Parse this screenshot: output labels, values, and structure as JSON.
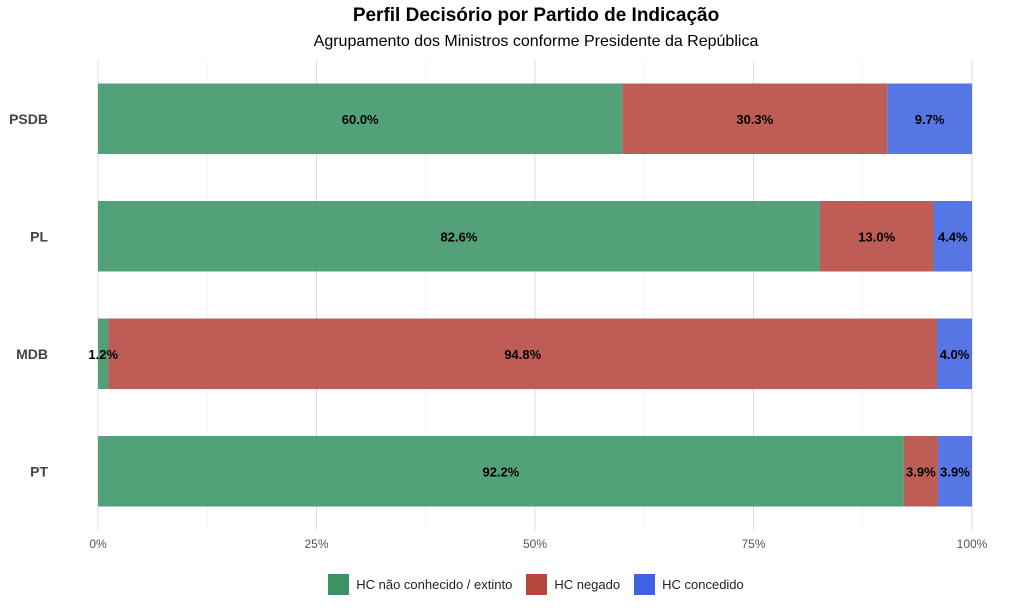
{
  "title": "Perfil Decisório por Partido de Indicação",
  "subtitle": "Agrupamento dos Ministros conforme Presidente da República",
  "chart_data": {
    "type": "bar",
    "orientation": "horizontal",
    "stacked": true,
    "normalized": true,
    "categories": [
      "PSDB",
      "PL",
      "MDB",
      "PT"
    ],
    "series": [
      {
        "name": "HC não conhecido / extinto",
        "color": "#3a9465",
        "values": [
          60.0,
          82.6,
          1.2,
          92.2
        ],
        "labels": [
          "60.0%",
          "82.6%",
          "1.2%",
          "92.2%"
        ]
      },
      {
        "name": "HC negado",
        "color": "#b5473d",
        "values": [
          30.3,
          13.0,
          94.8,
          3.9
        ],
        "labels": [
          "30.3%",
          "13.0%",
          "94.8%",
          "3.9%"
        ]
      },
      {
        "name": "HC concedido",
        "color": "#3d63e0",
        "values": [
          9.7,
          4.4,
          4.0,
          3.9
        ],
        "labels": [
          "9.7%",
          "4.4%",
          "4.0%",
          "3.9%"
        ]
      }
    ],
    "xticks": [
      "0%",
      "25%",
      "50%",
      "75%",
      "100%"
    ],
    "xlim": [
      0,
      100
    ],
    "grid": true,
    "legend_position": "bottom"
  }
}
